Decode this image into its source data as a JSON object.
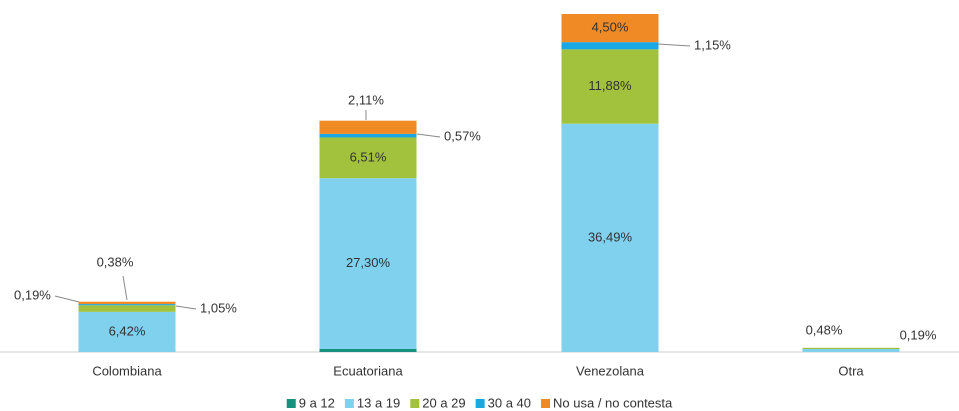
{
  "chart_data": {
    "type": "stacked_bar",
    "categories": [
      "Colombiana",
      "Ecuatoriana",
      "Venezolana",
      "Otra"
    ],
    "series": [
      {
        "name": "9 a 12",
        "color": "#16917e",
        "values": [
          null,
          0.48,
          null,
          null
        ],
        "value_labels": [
          null,
          null,
          null,
          null
        ]
      },
      {
        "name": "13 a 19",
        "color": "#7fd1ee",
        "values": [
          6.42,
          27.3,
          36.49,
          0.48
        ],
        "value_labels": [
          "6,42%",
          "27,30%",
          "36,49%",
          "0,48%"
        ]
      },
      {
        "name": "20 a 29",
        "color": "#a2c13c",
        "values": [
          1.05,
          6.51,
          11.88,
          0.19
        ],
        "value_labels": [
          "1,05%",
          "6,51%",
          "11,88%",
          "0,19%"
        ]
      },
      {
        "name": "30 a 40",
        "color": "#1aa8e4",
        "values": [
          0.19,
          0.57,
          1.15,
          null
        ],
        "value_labels": [
          "0,19%",
          "0,57%",
          "1,15%",
          null
        ]
      },
      {
        "name": "No usa / no contesta",
        "color": "#f08a24",
        "values": [
          0.38,
          2.11,
          4.5,
          null
        ],
        "value_labels": [
          "0,38%",
          "2,11%",
          "4,50%",
          null
        ]
      }
    ],
    "legend": "bottom"
  }
}
